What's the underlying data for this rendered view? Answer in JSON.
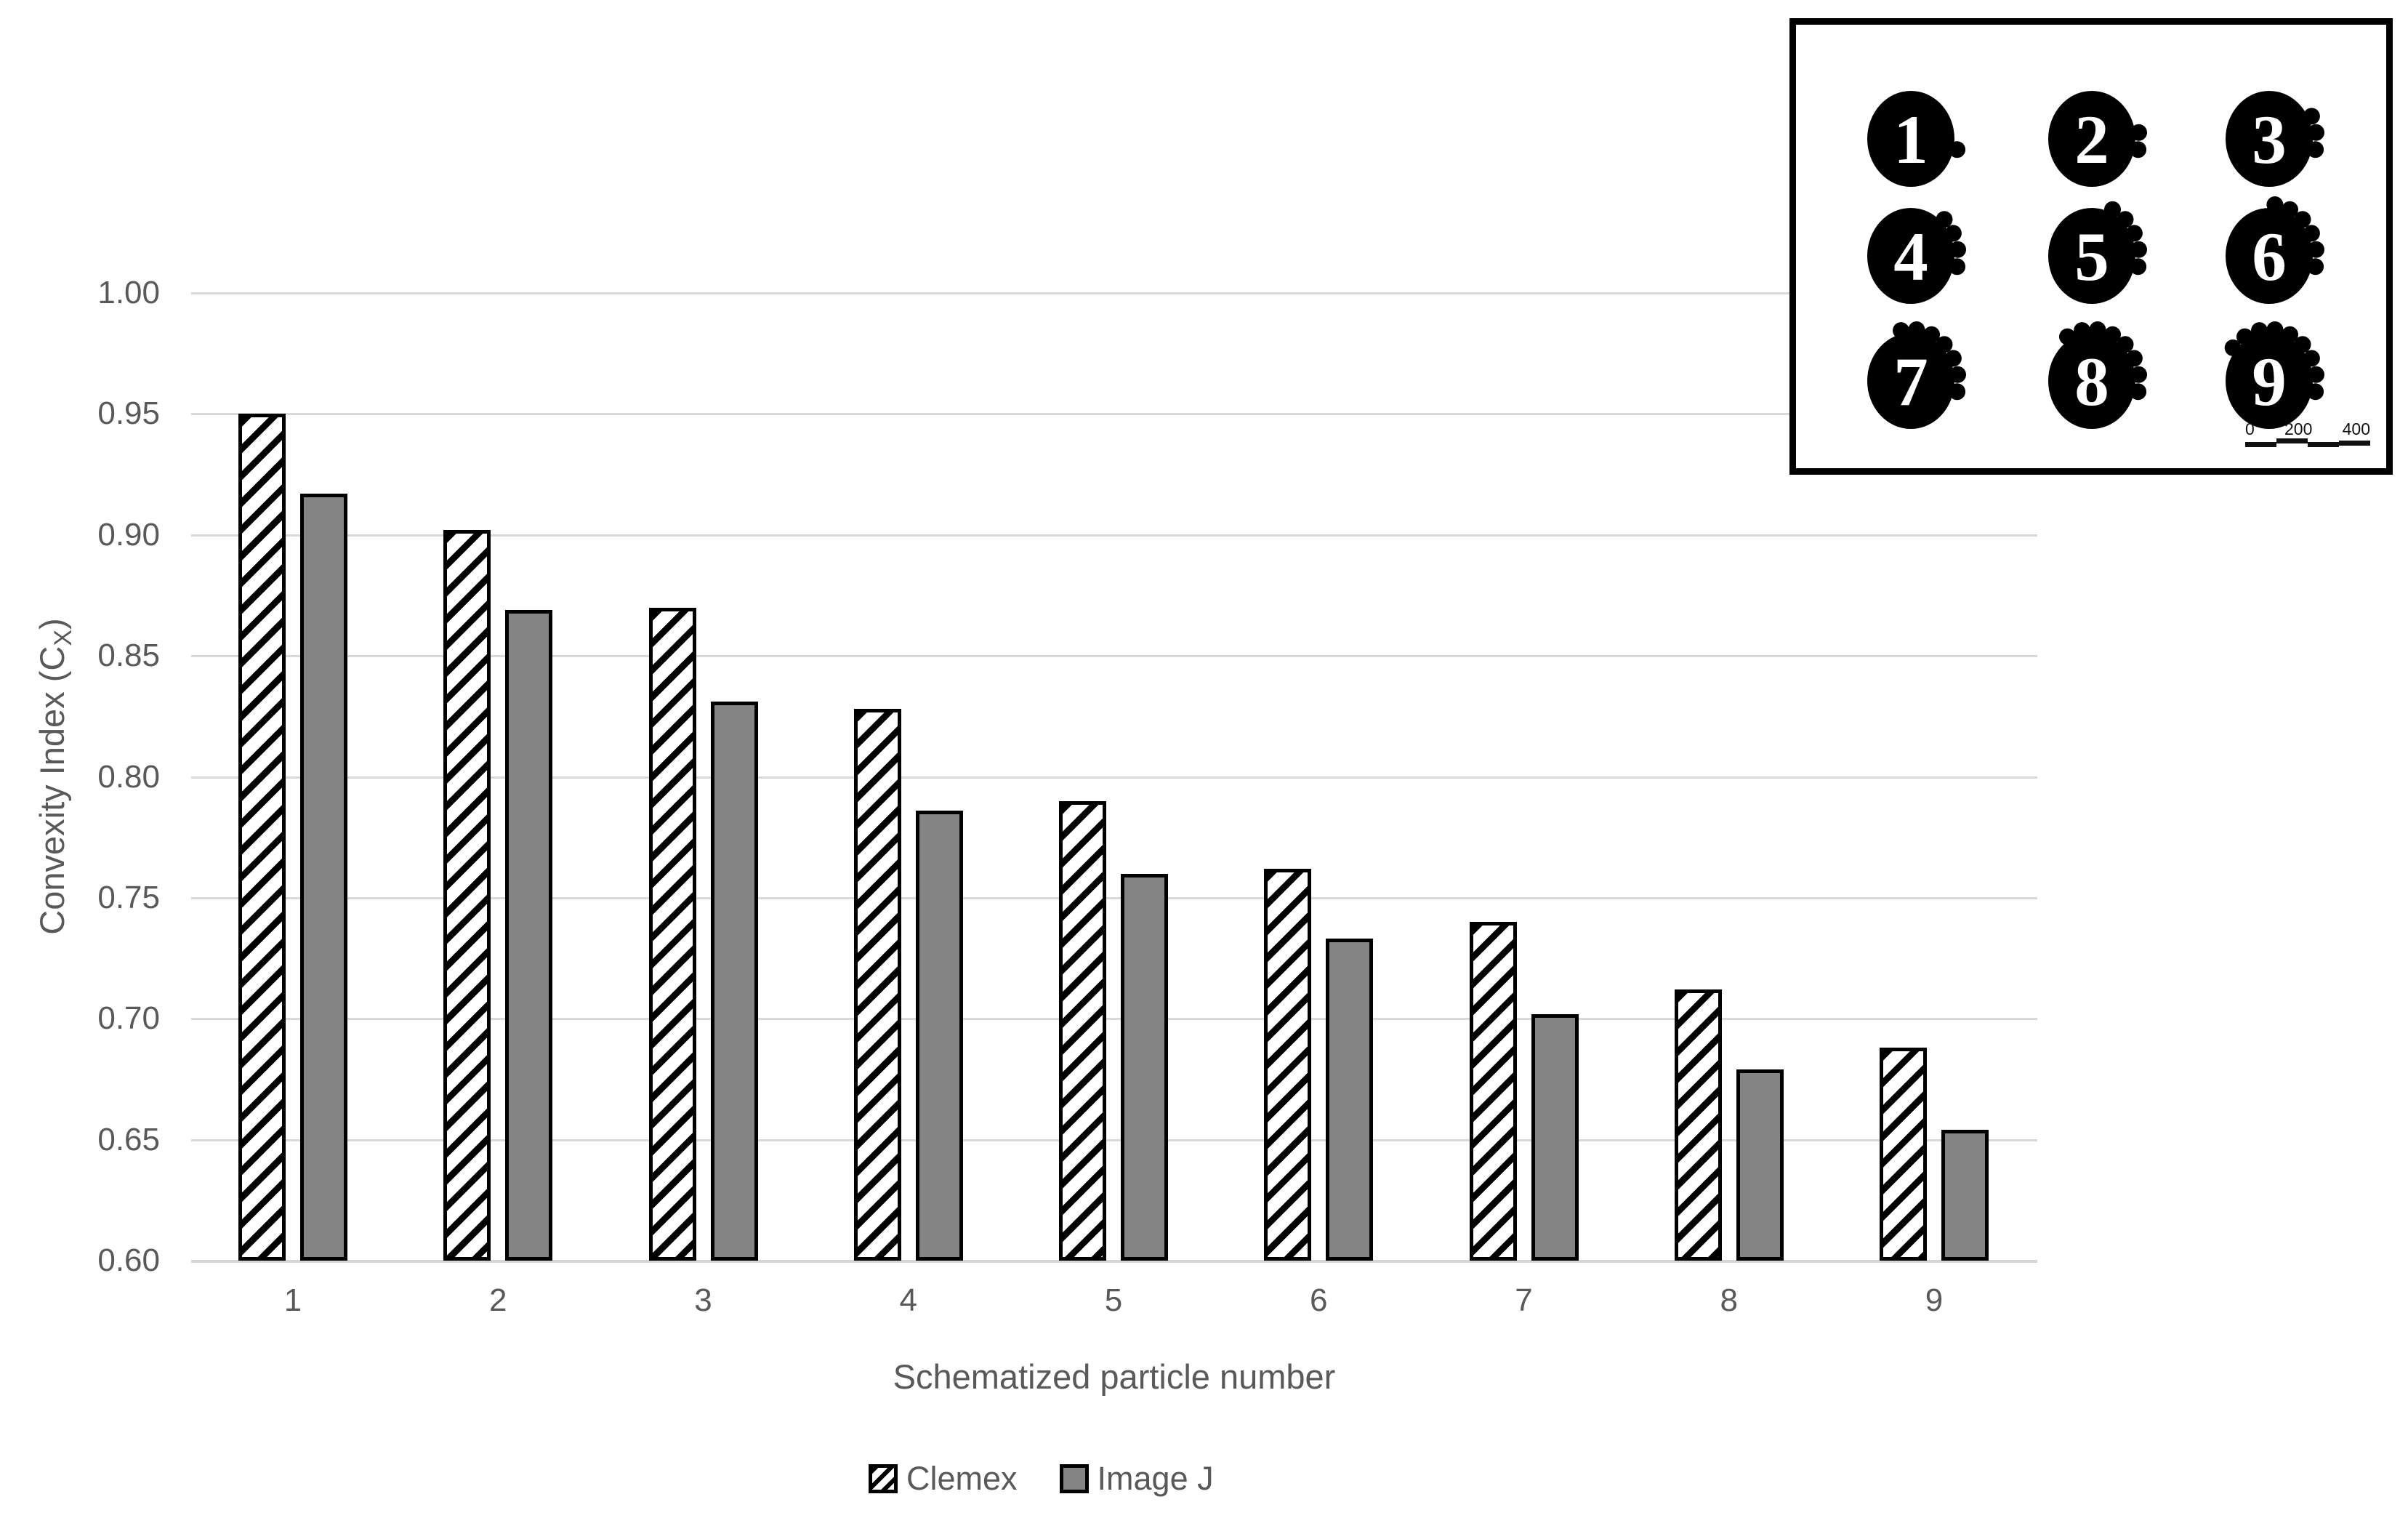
{
  "chart_data": {
    "type": "bar",
    "title": "",
    "categories": [
      "1",
      "2",
      "3",
      "4",
      "5",
      "6",
      "7",
      "8",
      "9"
    ],
    "series": [
      {
        "name": "Clemex",
        "pattern": "diagonal-hatch",
        "color": "#000000",
        "values": [
          0.95,
          0.902,
          0.87,
          0.828,
          0.79,
          0.762,
          0.74,
          0.712,
          0.688
        ]
      },
      {
        "name": "Image J",
        "pattern": "solid",
        "color": "#848484",
        "values": [
          0.917,
          0.869,
          0.831,
          0.786,
          0.76,
          0.733,
          0.702,
          0.679,
          0.654
        ]
      }
    ],
    "xlabel": "Schematized particle number",
    "ylabel": "Convexity Index (CX)",
    "ylim": [
      0.6,
      1.0
    ],
    "ytick_step": 0.05,
    "yticks": [
      "1.00",
      "0.95",
      "0.90",
      "0.85",
      "0.80",
      "0.75",
      "0.70",
      "0.65",
      "0.60"
    ],
    "grid": true,
    "legend_position": "bottom-center"
  },
  "ylabel_parts": {
    "main": "Convexity Index (C",
    "sub": "X",
    "close": ")"
  },
  "legend": {
    "items": [
      {
        "label": "Clemex",
        "swatch": "hatched"
      },
      {
        "label": "Image J",
        "swatch": "gray"
      }
    ]
  },
  "inset": {
    "description": "3x3 grid of black schematized particles with increasing surface bumps",
    "particles": [
      {
        "label": "1",
        "bumps": 1
      },
      {
        "label": "2",
        "bumps": 2
      },
      {
        "label": "3",
        "bumps": 3
      },
      {
        "label": "4",
        "bumps": 4
      },
      {
        "label": "5",
        "bumps": 5
      },
      {
        "label": "6",
        "bumps": 6
      },
      {
        "label": "7",
        "bumps": 7
      },
      {
        "label": "8",
        "bumps": 8
      },
      {
        "label": "9",
        "bumps": 9
      }
    ],
    "scale_bar": {
      "tick_labels": [
        "0",
        "200",
        "400"
      ]
    }
  },
  "colors": {
    "bar_gray": "#848484",
    "hatch_black": "#000000",
    "grid_line": "#d9d9d9",
    "axis_text": "#595959",
    "inset_border": "#000000"
  }
}
